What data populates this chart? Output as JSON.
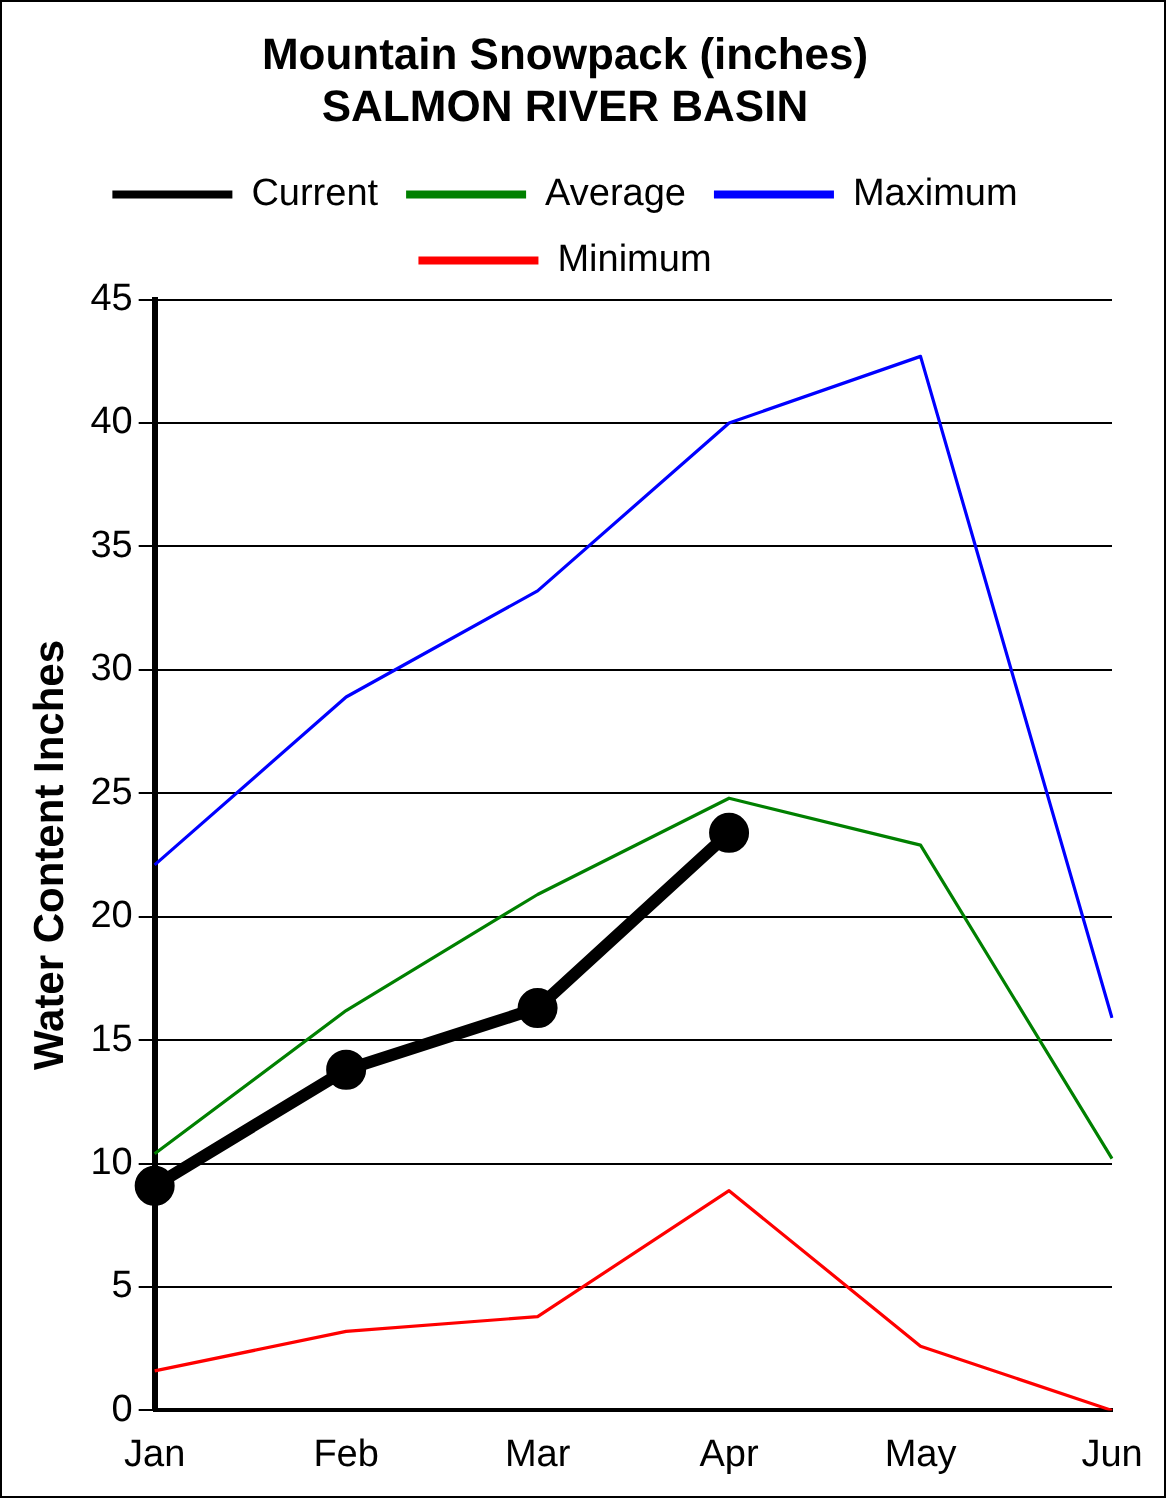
{
  "chart_data": {
    "type": "line",
    "title": [
      "Mountain Snowpack (inches)",
      "SALMON RIVER BASIN"
    ],
    "ylabel": "Water Content Inches",
    "categories": [
      "Jan",
      "Feb",
      "Mar",
      "Apr",
      "May",
      "Jun"
    ],
    "series": [
      {
        "name": "Current",
        "color": "#000000",
        "values": [
          9.1,
          13.8,
          16.3,
          23.4,
          null,
          null
        ],
        "marker": "circle"
      },
      {
        "name": "Average",
        "color": "#008000",
        "values": [
          10.4,
          16.2,
          20.9,
          24.8,
          22.9,
          10.2
        ],
        "marker": "none"
      },
      {
        "name": "Maximum",
        "color": "#0000ff",
        "values": [
          22.1,
          28.9,
          33.2,
          40.0,
          42.7,
          15.9
        ],
        "marker": "none"
      },
      {
        "name": "Minimum",
        "color": "#ff0000",
        "values": [
          1.6,
          3.2,
          3.8,
          8.9,
          2.6,
          0
        ],
        "marker": "none"
      }
    ],
    "ylim": [
      0,
      45
    ],
    "yticks": [
      0,
      5,
      10,
      15,
      20,
      25,
      30,
      35,
      40,
      45
    ],
    "grid": "y",
    "legend": "top",
    "line_style": "solid"
  }
}
